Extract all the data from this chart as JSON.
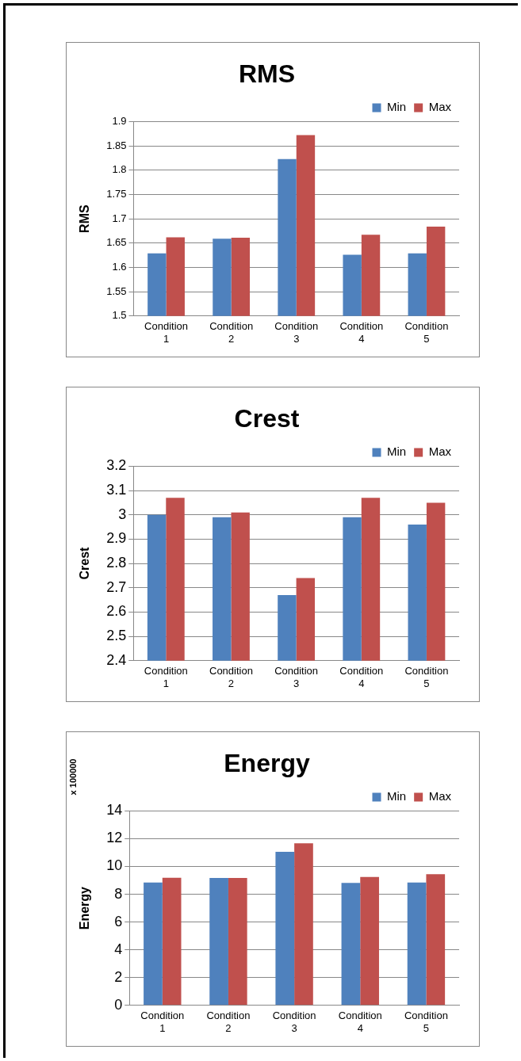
{
  "chart_data": [
    {
      "type": "bar",
      "title": "RMS",
      "ylabel": "RMS",
      "categories": [
        "Condition 1",
        "Condition 2",
        "Condition 3",
        "Condition 4",
        "Condition 5"
      ],
      "series": [
        {
          "name": "Min",
          "color": "#4f81bd",
          "values": [
            1.629,
            1.659,
            1.823,
            1.626,
            1.629
          ]
        },
        {
          "name": "Max",
          "color": "#c0504d",
          "values": [
            1.662,
            1.661,
            1.872,
            1.667,
            1.684
          ]
        }
      ],
      "ylim": [
        1.5,
        1.9
      ],
      "yticks": [
        1.5,
        1.55,
        1.6,
        1.65,
        1.7,
        1.75,
        1.8,
        1.85,
        1.9
      ],
      "grid": "y",
      "legend": "top right"
    },
    {
      "type": "bar",
      "title": "Crest",
      "ylabel": "Crest",
      "categories": [
        "Condition 1",
        "Condition 2",
        "Condition 3",
        "Condition 4",
        "Condition 5"
      ],
      "series": [
        {
          "name": "Min",
          "color": "#4f81bd",
          "values": [
            3.0,
            2.99,
            2.67,
            2.99,
            2.96
          ]
        },
        {
          "name": "Max",
          "color": "#c0504d",
          "values": [
            3.07,
            3.01,
            2.74,
            3.07,
            3.05
          ]
        }
      ],
      "ylim": [
        2.4,
        3.2
      ],
      "yticks": [
        2.4,
        2.5,
        2.6,
        2.7,
        2.8,
        2.9,
        3,
        3.1,
        3.2
      ],
      "grid": "y",
      "legend": "top right"
    },
    {
      "type": "bar",
      "title": "Energy",
      "ylabel": "Energy",
      "annotations": [
        "x 100000"
      ],
      "categories": [
        "Condition 1",
        "Condition 2",
        "Condition 3",
        "Condition 4",
        "Condition 5"
      ],
      "series": [
        {
          "name": "Min",
          "color": "#4f81bd",
          "values": [
            8.85,
            9.17,
            11.06,
            8.81,
            8.85
          ]
        },
        {
          "name": "Max",
          "color": "#c0504d",
          "values": [
            9.19,
            9.17,
            11.67,
            9.24,
            9.44
          ]
        }
      ],
      "ylim": [
        0,
        14
      ],
      "yticks": [
        0,
        2,
        4,
        6,
        8,
        10,
        12,
        14
      ],
      "grid": "y",
      "legend": "top right"
    }
  ]
}
